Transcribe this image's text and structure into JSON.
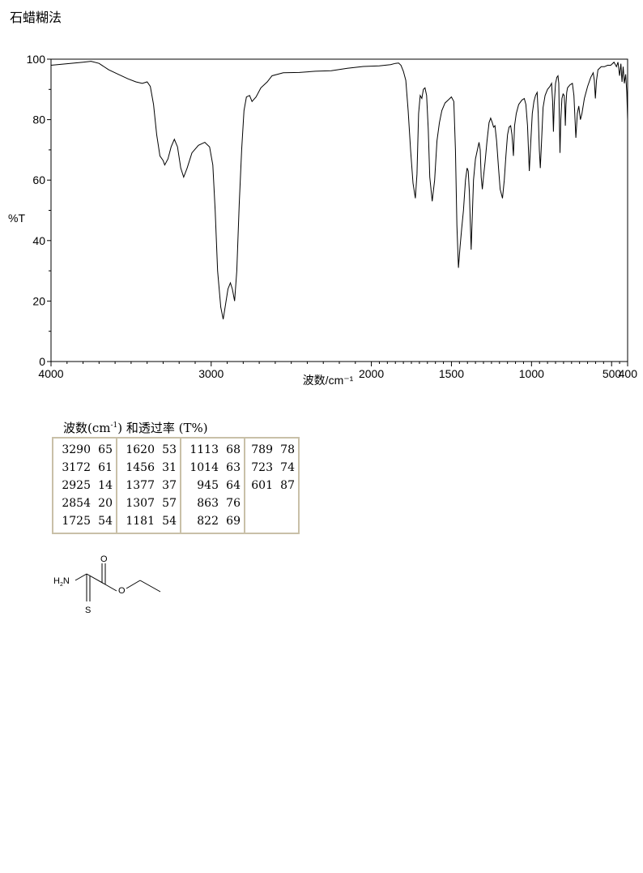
{
  "method_label": "石蜡糊法",
  "chart_data": {
    "type": "line",
    "title": "",
    "xlabel": "波数/cm⁻¹",
    "ylabel": "%T",
    "xlim": [
      4000,
      400
    ],
    "ylim": [
      0,
      100
    ],
    "x_ticks": [
      {
        "value": 4000,
        "label": "4000"
      },
      {
        "value": 3000,
        "label": "3000"
      },
      {
        "value": 2000,
        "label": "2000"
      },
      {
        "value": 1500,
        "label": "1500"
      },
      {
        "value": 1000,
        "label": "1000"
      },
      {
        "value": 500,
        "label": "500"
      },
      {
        "value": 400,
        "label": "400"
      }
    ],
    "y_ticks": [
      {
        "value": 0,
        "label": "0"
      },
      {
        "value": 20,
        "label": "20"
      },
      {
        "value": 40,
        "label": "40"
      },
      {
        "value": 60,
        "label": "60"
      },
      {
        "value": 80,
        "label": "80"
      },
      {
        "value": 100,
        "label": "100"
      }
    ],
    "grid": false,
    "series": [
      {
        "color": "#000000",
        "points": [
          [
            4000,
            98
          ],
          [
            3900,
            98.5
          ],
          [
            3800,
            99
          ],
          [
            3750,
            99.3
          ],
          [
            3700,
            98.6
          ],
          [
            3640,
            96.5
          ],
          [
            3580,
            95
          ],
          [
            3520,
            93.5
          ],
          [
            3470,
            92.5
          ],
          [
            3430,
            92
          ],
          [
            3400,
            92.5
          ],
          [
            3380,
            91
          ],
          [
            3360,
            85
          ],
          [
            3340,
            75
          ],
          [
            3320,
            68
          ],
          [
            3300,
            66.5
          ],
          [
            3290,
            65
          ],
          [
            3270,
            67
          ],
          [
            3250,
            71
          ],
          [
            3230,
            73.5
          ],
          [
            3210,
            71
          ],
          [
            3190,
            64
          ],
          [
            3172,
            61
          ],
          [
            3150,
            64
          ],
          [
            3120,
            69
          ],
          [
            3080,
            71.5
          ],
          [
            3040,
            72.5
          ],
          [
            3010,
            71
          ],
          [
            2990,
            65
          ],
          [
            2975,
            50
          ],
          [
            2960,
            30
          ],
          [
            2940,
            18
          ],
          [
            2925,
            14
          ],
          [
            2910,
            19
          ],
          [
            2895,
            24
          ],
          [
            2880,
            26
          ],
          [
            2868,
            24
          ],
          [
            2854,
            20
          ],
          [
            2840,
            30
          ],
          [
            2825,
            52
          ],
          [
            2810,
            70
          ],
          [
            2795,
            83
          ],
          [
            2780,
            87.5
          ],
          [
            2760,
            88
          ],
          [
            2745,
            86
          ],
          [
            2720,
            87.5
          ],
          [
            2690,
            90.5
          ],
          [
            2650,
            92.5
          ],
          [
            2620,
            94.5
          ],
          [
            2550,
            95.5
          ],
          [
            2450,
            95.6
          ],
          [
            2350,
            96
          ],
          [
            2250,
            96.2
          ],
          [
            2150,
            97
          ],
          [
            2050,
            97.6
          ],
          [
            1950,
            97.8
          ],
          [
            1880,
            98.2
          ],
          [
            1850,
            98.6
          ],
          [
            1830,
            98.7
          ],
          [
            1815,
            98
          ],
          [
            1800,
            96
          ],
          [
            1785,
            93
          ],
          [
            1770,
            83
          ],
          [
            1755,
            70
          ],
          [
            1740,
            59
          ],
          [
            1725,
            54
          ],
          [
            1715,
            62
          ],
          [
            1705,
            82
          ],
          [
            1695,
            88
          ],
          [
            1685,
            87
          ],
          [
            1675,
            90
          ],
          [
            1665,
            90.5
          ],
          [
            1655,
            88
          ],
          [
            1645,
            77
          ],
          [
            1635,
            61
          ],
          [
            1620,
            53
          ],
          [
            1605,
            60
          ],
          [
            1590,
            73
          ],
          [
            1575,
            79
          ],
          [
            1560,
            83
          ],
          [
            1540,
            85.5
          ],
          [
            1520,
            86.5
          ],
          [
            1500,
            87.5
          ],
          [
            1485,
            86
          ],
          [
            1475,
            70
          ],
          [
            1466,
            45
          ],
          [
            1456,
            31
          ],
          [
            1446,
            38
          ],
          [
            1436,
            44
          ],
          [
            1425,
            50
          ],
          [
            1412,
            60
          ],
          [
            1402,
            64
          ],
          [
            1395,
            63
          ],
          [
            1388,
            56
          ],
          [
            1377,
            37
          ],
          [
            1370,
            48
          ],
          [
            1362,
            60
          ],
          [
            1350,
            67
          ],
          [
            1338,
            70
          ],
          [
            1328,
            72.5
          ],
          [
            1320,
            70
          ],
          [
            1314,
            61
          ],
          [
            1307,
            57
          ],
          [
            1300,
            61
          ],
          [
            1290,
            66
          ],
          [
            1278,
            73
          ],
          [
            1265,
            79
          ],
          [
            1255,
            80.5
          ],
          [
            1245,
            79
          ],
          [
            1237,
            77.5
          ],
          [
            1228,
            78
          ],
          [
            1218,
            73
          ],
          [
            1206,
            64
          ],
          [
            1196,
            57
          ],
          [
            1181,
            54
          ],
          [
            1170,
            60
          ],
          [
            1160,
            68
          ],
          [
            1150,
            75
          ],
          [
            1140,
            77.5
          ],
          [
            1130,
            78
          ],
          [
            1122,
            75
          ],
          [
            1113,
            68
          ],
          [
            1106,
            78
          ],
          [
            1095,
            82
          ],
          [
            1080,
            85
          ],
          [
            1060,
            86.5
          ],
          [
            1045,
            87
          ],
          [
            1035,
            85
          ],
          [
            1025,
            78
          ],
          [
            1014,
            63
          ],
          [
            1005,
            72
          ],
          [
            995,
            82
          ],
          [
            985,
            86
          ],
          [
            975,
            88
          ],
          [
            965,
            89
          ],
          [
            958,
            82
          ],
          [
            951,
            70
          ],
          [
            945,
            64
          ],
          [
            938,
            72
          ],
          [
            928,
            84
          ],
          [
            915,
            88
          ],
          [
            900,
            90
          ],
          [
            885,
            91
          ],
          [
            875,
            92
          ],
          [
            868,
            86
          ],
          [
            863,
            76
          ],
          [
            858,
            85
          ],
          [
            850,
            92
          ],
          [
            842,
            94
          ],
          [
            835,
            94.5
          ],
          [
            830,
            92
          ],
          [
            826,
            80
          ],
          [
            822,
            69
          ],
          [
            817,
            80
          ],
          [
            810,
            87
          ],
          [
            803,
            88.5
          ],
          [
            796,
            88
          ],
          [
            792,
            84
          ],
          [
            789,
            78
          ],
          [
            785,
            85
          ],
          [
            780,
            89
          ],
          [
            775,
            90.5
          ],
          [
            760,
            91.5
          ],
          [
            745,
            92
          ],
          [
            735,
            88
          ],
          [
            723,
            74
          ],
          [
            714,
            82
          ],
          [
            705,
            84.5
          ],
          [
            695,
            80
          ],
          [
            685,
            82
          ],
          [
            670,
            87
          ],
          [
            650,
            91
          ],
          [
            630,
            94
          ],
          [
            615,
            95.5
          ],
          [
            608,
            93
          ],
          [
            601,
            87
          ],
          [
            594,
            93
          ],
          [
            585,
            96.5
          ],
          [
            565,
            97.5
          ],
          [
            545,
            97.5
          ],
          [
            525,
            98
          ],
          [
            505,
            98
          ],
          [
            485,
            99
          ],
          [
            470,
            97.5
          ],
          [
            460,
            99
          ],
          [
            450,
            94.5
          ],
          [
            442,
            98.5
          ],
          [
            435,
            92.5
          ],
          [
            428,
            97.5
          ],
          [
            420,
            92
          ],
          [
            412,
            95
          ],
          [
            405,
            89
          ],
          [
            400,
            80
          ]
        ]
      }
    ]
  },
  "peak_table": {
    "title_prefix": "波数(cm",
    "title_sup": "-1",
    "title_suffix": ") 和透过率 (T%)",
    "columns": [
      [
        [
          "3290",
          "65"
        ],
        [
          "3172",
          "61"
        ],
        [
          "2925",
          "14"
        ],
        [
          "2854",
          "20"
        ],
        [
          "1725",
          "54"
        ]
      ],
      [
        [
          "1620",
          "53"
        ],
        [
          "1456",
          "31"
        ],
        [
          "1377",
          "37"
        ],
        [
          "1307",
          "57"
        ],
        [
          "1181",
          "54"
        ]
      ],
      [
        [
          "1113",
          "68"
        ],
        [
          "1014",
          "63"
        ],
        [
          "945",
          "64"
        ],
        [
          "863",
          "76"
        ],
        [
          "822",
          "69"
        ]
      ],
      [
        [
          "789",
          "78"
        ],
        [
          "723",
          "74"
        ],
        [
          "601",
          "87"
        ]
      ]
    ]
  },
  "structure": {
    "atoms": [
      "H2N",
      "O",
      "O",
      "S"
    ]
  }
}
